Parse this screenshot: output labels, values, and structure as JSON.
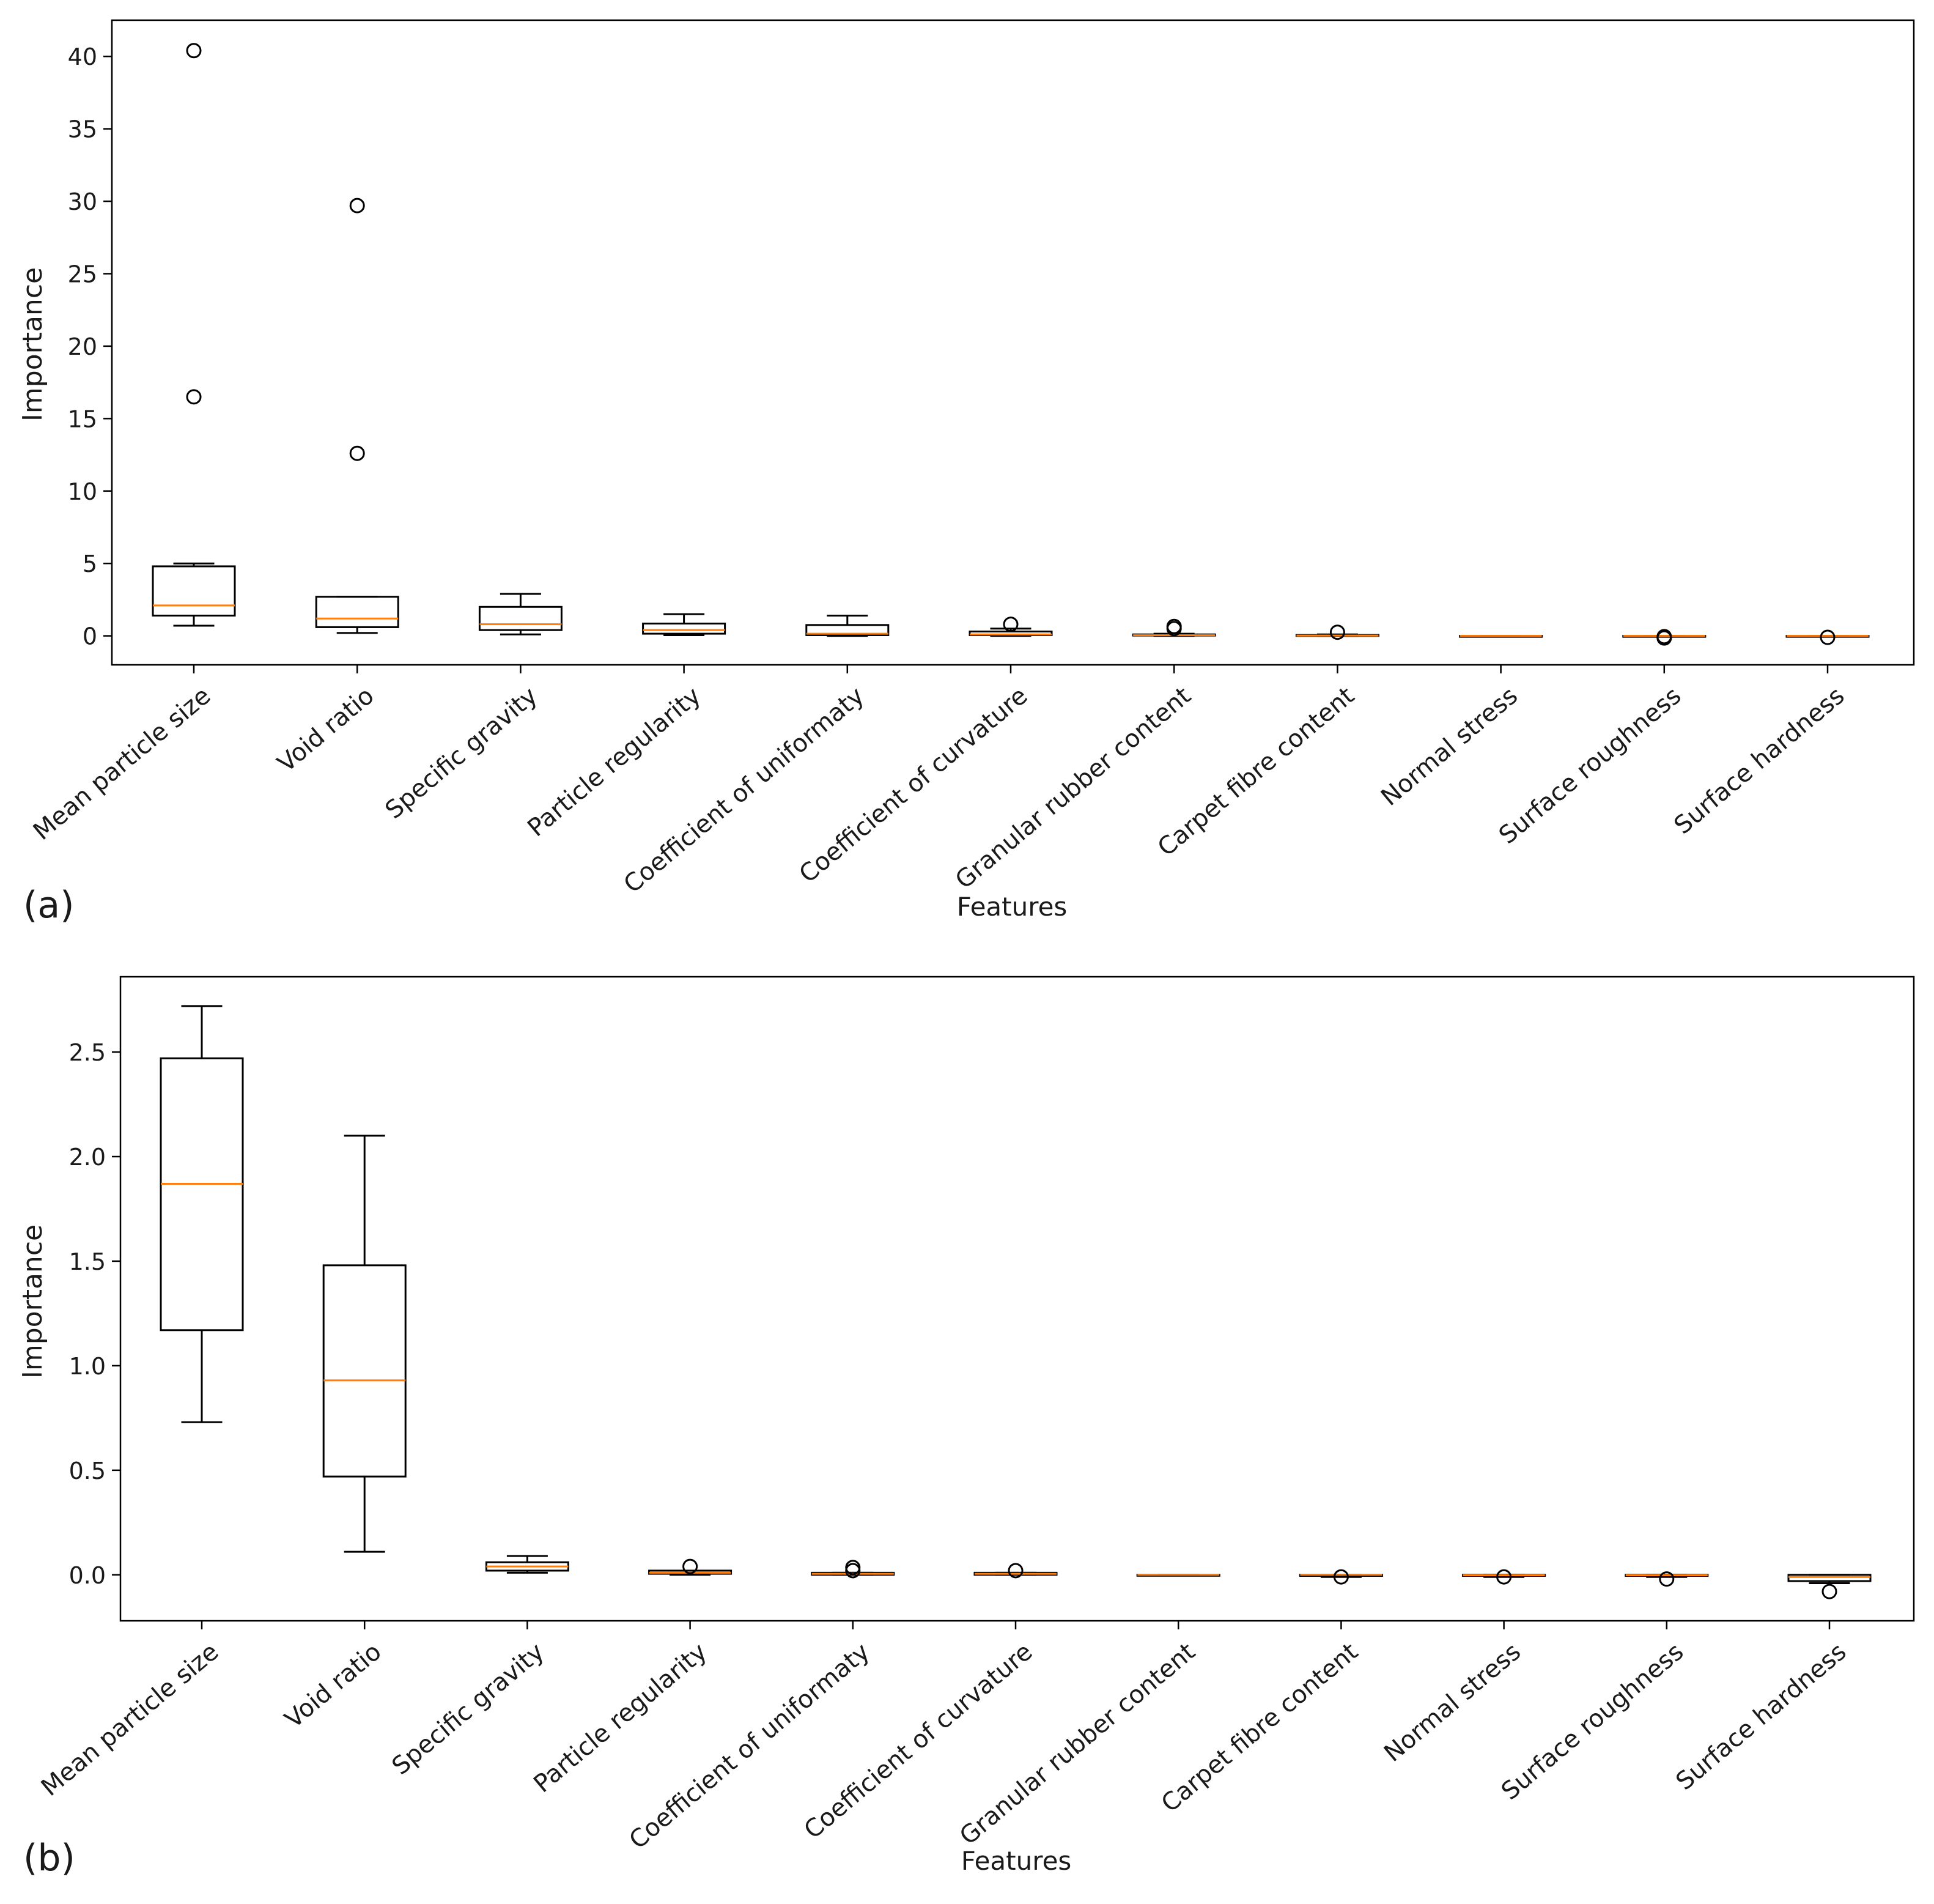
{
  "chart_data": [
    {
      "type": "box",
      "panel_label": "(a)",
      "xlabel": "Features",
      "ylabel": "Importance",
      "ylim": [
        -2,
        42.5
      ],
      "yticks": [
        0,
        5,
        10,
        15,
        20,
        25,
        30,
        35,
        40
      ],
      "tick_labels": [
        "0",
        "5",
        "10",
        "15",
        "20",
        "25",
        "30",
        "35",
        "40"
      ],
      "grid": false,
      "categories": [
        "Mean particle size",
        "Void ratio",
        "Specific gravity",
        "Particle regularity",
        "Coefficient of uniformaty",
        "Coefficient of curvature",
        "Granular rubber content",
        "Carpet fibre content",
        "Normal stress",
        "Surface roughness",
        "Surface hardness"
      ],
      "boxes": [
        {
          "whislo": 0.7,
          "q1": 1.4,
          "med": 2.1,
          "q3": 4.8,
          "whishi": 5.0,
          "fliers": [
            16.5,
            40.4
          ]
        },
        {
          "whislo": 0.2,
          "q1": 0.6,
          "med": 1.2,
          "q3": 2.7,
          "whishi": 2.7,
          "fliers": [
            12.6,
            29.7
          ]
        },
        {
          "whislo": 0.1,
          "q1": 0.4,
          "med": 0.8,
          "q3": 2.0,
          "whishi": 2.9,
          "fliers": []
        },
        {
          "whislo": 0.05,
          "q1": 0.15,
          "med": 0.4,
          "q3": 0.85,
          "whishi": 1.5,
          "fliers": []
        },
        {
          "whislo": 0.0,
          "q1": 0.05,
          "med": 0.15,
          "q3": 0.75,
          "whishi": 1.4,
          "fliers": []
        },
        {
          "whislo": 0.0,
          "q1": 0.05,
          "med": 0.1,
          "q3": 0.3,
          "whishi": 0.5,
          "fliers": [
            0.8
          ]
        },
        {
          "whislo": 0.0,
          "q1": 0.02,
          "med": 0.04,
          "q3": 0.1,
          "whishi": 0.15,
          "fliers": [
            0.5,
            0.65
          ]
        },
        {
          "whislo": 0.0,
          "q1": 0.0,
          "med": 0.02,
          "q3": 0.06,
          "whishi": 0.1,
          "fliers": [
            0.25
          ]
        },
        {
          "whislo": 0.0,
          "q1": 0.0,
          "med": 0.0,
          "q3": 0.0,
          "whishi": 0.0,
          "fliers": []
        },
        {
          "whislo": 0.0,
          "q1": 0.0,
          "med": 0.0,
          "q3": 0.0,
          "whishi": 0.0,
          "fliers": [
            -0.05,
            -0.15
          ]
        },
        {
          "whislo": -0.02,
          "q1": -0.01,
          "med": 0.0,
          "q3": 0.0,
          "whishi": 0.0,
          "fliers": [
            -0.1
          ]
        }
      ],
      "colors": {
        "box": "#000000",
        "median": "#ff7f0e",
        "flier": "#000000"
      }
    },
    {
      "type": "box",
      "panel_label": "(b)",
      "xlabel": "Features",
      "ylabel": "Importance",
      "ylim": [
        -0.22,
        2.86
      ],
      "yticks": [
        0.0,
        0.5,
        1.0,
        1.5,
        2.0,
        2.5
      ],
      "tick_labels": [
        "0.0",
        "0.5",
        "1.0",
        "1.5",
        "2.0",
        "2.5"
      ],
      "grid": false,
      "categories": [
        "Mean particle size",
        "Void ratio",
        "Specific gravity",
        "Particle regularity",
        "Coefficient of uniformaty",
        "Coefficient of curvature",
        "Granular rubber content",
        "Carpet fibre content",
        "Normal stress",
        "Surface roughness",
        "Surface hardness"
      ],
      "boxes": [
        {
          "whislo": 0.73,
          "q1": 1.17,
          "med": 1.87,
          "q3": 2.47,
          "whishi": 2.72,
          "fliers": []
        },
        {
          "whislo": 0.11,
          "q1": 0.47,
          "med": 0.93,
          "q3": 1.48,
          "whishi": 2.1,
          "fliers": []
        },
        {
          "whislo": 0.01,
          "q1": 0.02,
          "med": 0.04,
          "q3": 0.06,
          "whishi": 0.09,
          "fliers": []
        },
        {
          "whislo": 0.0,
          "q1": 0.005,
          "med": 0.01,
          "q3": 0.02,
          "whishi": 0.02,
          "fliers": [
            0.04
          ]
        },
        {
          "whislo": 0.0,
          "q1": 0.0,
          "med": 0.005,
          "q3": 0.01,
          "whishi": 0.01,
          "fliers": [
            0.02,
            0.035
          ]
        },
        {
          "whislo": 0.0,
          "q1": 0.0,
          "med": 0.005,
          "q3": 0.01,
          "whishi": 0.01,
          "fliers": [
            0.02
          ]
        },
        {
          "whislo": 0.0,
          "q1": 0.0,
          "med": 0.0,
          "q3": 0.0,
          "whishi": 0.0,
          "fliers": []
        },
        {
          "whislo": -0.01,
          "q1": -0.005,
          "med": 0.0,
          "q3": 0.0,
          "whishi": 0.0,
          "fliers": [
            -0.01
          ]
        },
        {
          "whislo": -0.01,
          "q1": -0.005,
          "med": -0.002,
          "q3": 0.0,
          "whishi": 0.0,
          "fliers": [
            -0.01
          ]
        },
        {
          "whislo": -0.01,
          "q1": -0.005,
          "med": -0.002,
          "q3": 0.0,
          "whishi": 0.0,
          "fliers": [
            -0.02
          ]
        },
        {
          "whislo": -0.04,
          "q1": -0.03,
          "med": -0.01,
          "q3": 0.0,
          "whishi": 0.0,
          "fliers": [
            -0.08
          ]
        }
      ],
      "colors": {
        "box": "#000000",
        "median": "#ff7f0e",
        "flier": "#000000"
      }
    }
  ]
}
